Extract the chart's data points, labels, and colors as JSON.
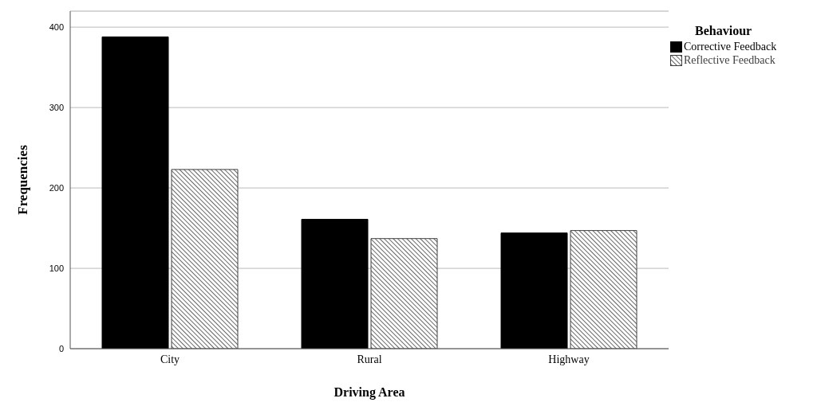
{
  "chart_data": {
    "type": "bar",
    "xlabel": "Driving Area",
    "ylabel": "Frequencies",
    "legend_title": "Behaviour",
    "categories": [
      "City",
      "Rural",
      "Highway"
    ],
    "series": [
      {
        "name": "Corrective Feedback",
        "color": "#000000",
        "values": [
          388,
          161,
          144
        ]
      },
      {
        "name": "Reflective Feedback",
        "color": "#404040",
        "values": [
          223,
          137,
          147
        ]
      }
    ],
    "ylim": [
      0,
      420
    ],
    "yticks": [
      0,
      100,
      200,
      300,
      400
    ],
    "grid": "y",
    "legend": "top right"
  }
}
